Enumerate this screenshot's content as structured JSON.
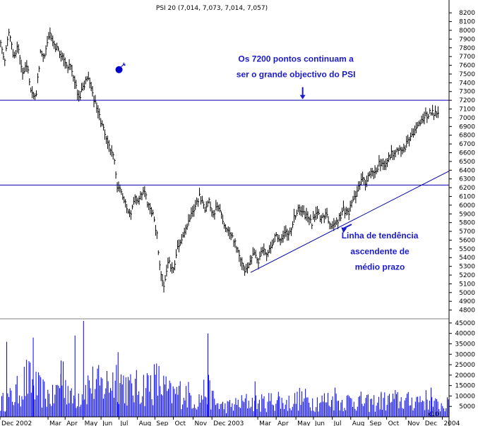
{
  "chart_data": {
    "type": "candlestick",
    "title": "PSI 20 (7,014, 7,073, 7,014, 7,057)",
    "colors": {
      "price": "#000000",
      "volume": "#0000ff",
      "lines": "#0000aa",
      "annotation": "#1a1acc"
    },
    "price_axis": {
      "ylim": [
        4700,
        8250
      ],
      "ticks": [
        4800,
        4900,
        5000,
        5100,
        5200,
        5300,
        5400,
        5500,
        5600,
        5700,
        5800,
        5900,
        6000,
        6100,
        6200,
        6300,
        6400,
        6500,
        6600,
        6700,
        6800,
        6900,
        7000,
        7100,
        7200,
        7300,
        7400,
        7500,
        7600,
        7700,
        7800,
        7900,
        8000,
        8100,
        8200
      ]
    },
    "volume_axis": {
      "ylim": [
        0,
        47000
      ],
      "ticks": [
        5000,
        10000,
        15000,
        20000,
        25000,
        30000,
        35000,
        40000,
        45000
      ],
      "unit_label": "x10"
    },
    "x_axis": {
      "labels": [
        "Dec 2002",
        "Mar",
        "Apr",
        "May",
        "Jun",
        "Jul",
        "Aug",
        "Sep",
        "Oct",
        "Nov",
        "Dec 2003",
        "Mar",
        "Apr",
        "May",
        "Jun",
        "Jul",
        "Aug",
        "Sep",
        "Oct",
        "Nov",
        "Dec",
        "2004"
      ],
      "label_pos": [
        0,
        10.7,
        14.5,
        18.5,
        22.5,
        26.5,
        30.6,
        34.5,
        38.6,
        43.0,
        47.2,
        57.4,
        61.5,
        65.9,
        69.8,
        74.0,
        78.1,
        82.0,
        86.1,
        90.4,
        94.3,
        98.5
      ],
      "x_range": [
        0,
        100
      ]
    },
    "price_path": [
      [
        0,
        7900
      ],
      [
        1,
        7650
      ],
      [
        2,
        8000
      ],
      [
        3,
        7700
      ],
      [
        4,
        7800
      ],
      [
        5,
        7500
      ],
      [
        6,
        7600
      ],
      [
        7,
        7300
      ],
      [
        8,
        7250
      ],
      [
        9,
        7750
      ],
      [
        10,
        7700
      ],
      [
        11,
        7950
      ],
      [
        12,
        7850
      ],
      [
        13,
        7750
      ],
      [
        14,
        7700
      ],
      [
        15,
        7600
      ],
      [
        16,
        7550
      ],
      [
        17,
        7350
      ],
      [
        17.5,
        7200
      ],
      [
        18.5,
        7350
      ],
      [
        19.5,
        7450
      ],
      [
        20.5,
        7300
      ],
      [
        21.5,
        7100
      ],
      [
        22.5,
        6950
      ],
      [
        23.5,
        6800
      ],
      [
        24.5,
        6650
      ],
      [
        25.5,
        6500
      ],
      [
        26,
        6200
      ],
      [
        27,
        6150
      ],
      [
        28,
        6000
      ],
      [
        29,
        5900
      ],
      [
        30,
        6100
      ],
      [
        31,
        6050
      ],
      [
        32,
        6200
      ],
      [
        33,
        6000
      ],
      [
        34,
        5900
      ],
      [
        35,
        5650
      ],
      [
        35.5,
        5300
      ],
      [
        36.5,
        5100
      ],
      [
        37.5,
        5350
      ],
      [
        38.5,
        5250
      ],
      [
        39.5,
        5500
      ],
      [
        40.5,
        5600
      ],
      [
        41.5,
        5750
      ],
      [
        42.5,
        5900
      ],
      [
        43.5,
        6000
      ],
      [
        44.5,
        6100
      ],
      [
        45.5,
        5950
      ],
      [
        46.5,
        6050
      ],
      [
        47.5,
        5900
      ],
      [
        48.5,
        6000
      ],
      [
        49.5,
        5850
      ],
      [
        50.5,
        5700
      ],
      [
        51.5,
        5650
      ],
      [
        52.5,
        5550
      ],
      [
        53.5,
        5400
      ],
      [
        54.5,
        5250
      ],
      [
        55.5,
        5350
      ],
      [
        56.5,
        5450
      ],
      [
        57.5,
        5350
      ],
      [
        58.5,
        5500
      ],
      [
        59.5,
        5450
      ],
      [
        60.5,
        5550
      ],
      [
        61.5,
        5650
      ],
      [
        62.5,
        5600
      ],
      [
        63.5,
        5700
      ],
      [
        64.5,
        5650
      ],
      [
        65.5,
        5850
      ],
      [
        66.5,
        5950
      ],
      [
        67.5,
        5900
      ],
      [
        68.5,
        5850
      ],
      [
        69.5,
        5800
      ],
      [
        70.5,
        5900
      ],
      [
        71.5,
        5850
      ],
      [
        72.5,
        5900
      ],
      [
        73.5,
        5800
      ],
      [
        74.5,
        5750
      ],
      [
        75.5,
        5850
      ],
      [
        76.5,
        5950
      ],
      [
        77.5,
        5900
      ],
      [
        78.5,
        6050
      ],
      [
        79.5,
        6150
      ],
      [
        80.5,
        6300
      ],
      [
        81.5,
        6250
      ],
      [
        82.5,
        6400
      ],
      [
        83.5,
        6350
      ],
      [
        84.5,
        6500
      ],
      [
        85.5,
        6450
      ],
      [
        86.5,
        6550
      ],
      [
        87.5,
        6600
      ],
      [
        88.5,
        6650
      ],
      [
        89.5,
        6600
      ],
      [
        90.5,
        6700
      ],
      [
        91.5,
        6800
      ],
      [
        92.5,
        6850
      ],
      [
        93.5,
        6950
      ],
      [
        94.5,
        7000
      ],
      [
        95.5,
        7050
      ],
      [
        96.5,
        7060
      ],
      [
        97.5,
        7057
      ]
    ],
    "volume_path": [
      [
        0,
        8000
      ],
      [
        3,
        12000
      ],
      [
        6,
        22000
      ],
      [
        9,
        15000
      ],
      [
        12,
        11000
      ],
      [
        14,
        26000
      ],
      [
        16,
        10000
      ],
      [
        18,
        14000
      ],
      [
        20,
        20000
      ],
      [
        23,
        18000
      ],
      [
        26,
        24000
      ],
      [
        29,
        16000
      ],
      [
        32,
        18000
      ],
      [
        35,
        21000
      ],
      [
        38,
        13000
      ],
      [
        41,
        15000
      ],
      [
        44,
        9000
      ],
      [
        46,
        17000
      ],
      [
        48,
        8000
      ],
      [
        50,
        6000
      ],
      [
        52,
        7000
      ],
      [
        55,
        9000
      ],
      [
        58,
        8000
      ],
      [
        61,
        10000
      ],
      [
        64,
        8000
      ],
      [
        67,
        11000
      ],
      [
        70,
        9000
      ],
      [
        73,
        10000
      ],
      [
        76,
        9000
      ],
      [
        79,
        10000
      ],
      [
        82,
        8000
      ],
      [
        85,
        9000
      ],
      [
        88,
        10000
      ],
      [
        91,
        9000
      ],
      [
        94,
        11000
      ],
      [
        97,
        7000
      ]
    ],
    "volume_spikes": [
      [
        1.5,
        36000
      ],
      [
        7.4,
        38000
      ],
      [
        13.6,
        27000
      ],
      [
        16.7,
        39000
      ],
      [
        18.6,
        46000
      ],
      [
        26.3,
        31000
      ],
      [
        46.3,
        40000
      ],
      [
        56.8,
        17000
      ],
      [
        62.0,
        12000
      ],
      [
        74.6,
        14000
      ],
      [
        84.9,
        12000
      ],
      [
        96.0,
        14000
      ]
    ],
    "horizontal_lines": [
      7200,
      6230
    ],
    "trendline": [
      [
        55.8,
        5230
      ],
      [
        100,
        6390
      ]
    ],
    "annotations": [
      {
        "text": "Os 7200 pontos continuam a",
        "x": 65.9,
        "y": 7640,
        "size": 12
      },
      {
        "text": "ser o grande objectivo do PSI",
        "x": 65.9,
        "y": 7465,
        "size": 12
      },
      {
        "text": "Linha de tendência",
        "x": 84.6,
        "y": 5620,
        "size": 12
      },
      {
        "text": "ascendente de",
        "x": 84.6,
        "y": 5440,
        "size": 12
      },
      {
        "text": "médio prazo",
        "x": 84.6,
        "y": 5260,
        "size": 12
      }
    ]
  }
}
